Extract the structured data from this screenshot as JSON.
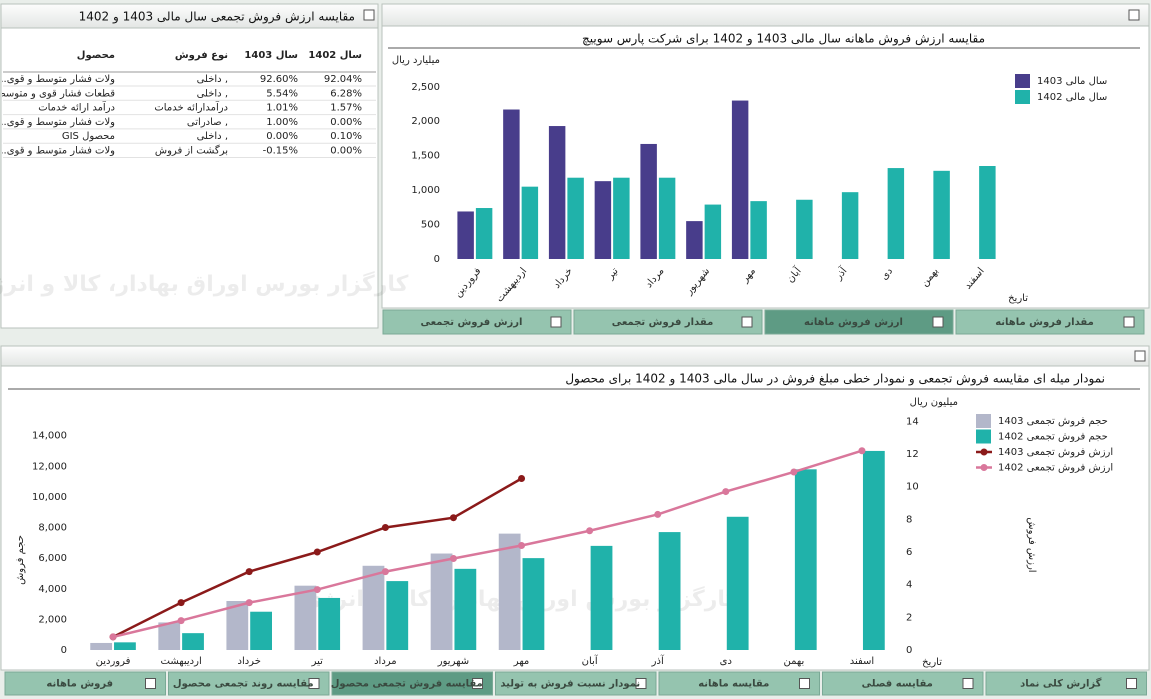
{
  "table_panel": {
    "title": "مقایسه ارزش فروش تجمعی سال مالی 1403 و 1402",
    "columns": [
      "سال 1402",
      "سال 1403",
      "نوع فروش",
      "محصول"
    ],
    "rows": [
      [
        "92.04%",
        "92.60%",
        "داخلی ,",
        "...ولات فشار متوسط و قوی"
      ],
      [
        "6.28%",
        "5.54%",
        "داخلی ,",
        "قطعات فشار قوی و متوسط"
      ],
      [
        "1.57%",
        "1.01%",
        "درآمدارائه خدمات",
        "درآمد ارائه خدمات"
      ],
      [
        "0.00%",
        "1.00%",
        "صادراتی ,",
        "...ولات فشار متوسط و قوی"
      ],
      [
        "0.10%",
        "0.00%",
        "داخلی ,",
        "GIS محصول"
      ],
      [
        "0.00%",
        "-0.15%",
        "برگشت از فروش",
        "...ولات فشار متوسط و قوی"
      ]
    ]
  },
  "watermark": "کارگزار بورس اوراق بهادار، کالا و انرژی",
  "chart_data": [
    {
      "type": "bar",
      "title": "مقایسه ارزش فروش ماهانه سال مالی 1403 و 1402 برای شرکت پارس سوییچ",
      "y_label": "میلیارد ریال",
      "x_label": "تاریخ",
      "categories": [
        "فروردین",
        "اردیبهشت",
        "خرداد",
        "تیر",
        "مرداد",
        "شهریور",
        "مهر",
        "آبان",
        "آذر",
        "دی",
        "بهمن",
        "اسفند"
      ],
      "series": [
        {
          "name": "سال مالی 1403",
          "color": "#483d8b",
          "values": [
            690,
            2170,
            1930,
            1130,
            1670,
            550,
            2300,
            null,
            null,
            null,
            null,
            null
          ]
        },
        {
          "name": "سال مالی 1402",
          "color": "#20b2aa",
          "values": [
            740,
            1050,
            1180,
            1180,
            1180,
            790,
            840,
            860,
            970,
            1320,
            1280,
            1350
          ]
        }
      ],
      "ylim": [
        0,
        2700
      ],
      "yticks": [
        0,
        500,
        {
          "value": 1000,
          "label": "1,000"
        },
        {
          "value": 1500,
          "label": "1,500"
        },
        {
          "value": 2000,
          "label": "2,000"
        },
        {
          "value": 2500,
          "label": "2,500"
        }
      ],
      "legend": "upper-right"
    },
    {
      "type": "combo",
      "title": "نمودار میله ای مقایسه فروش تجمعی و نمودار خطی مبلغ فروش در سال مالی 1403 و 1402 برای محصول",
      "y_label": "حجم فروش",
      "y2_label": "ارزش فروش",
      "y2_unit": "میلیون ریال",
      "x_label": "تاریخ",
      "categories": [
        "فروردین",
        "اردیبهشت",
        "خرداد",
        "تیر",
        "مرداد",
        "شهریور",
        "مهر",
        "آبان",
        "آذر",
        "دی",
        "بهمن",
        "اسفند"
      ],
      "series": [
        {
          "name": "حجم فروش تجمعی 1403",
          "type": "bar",
          "color": "#b3b7ca",
          "values": [
            460,
            1800,
            3200,
            4200,
            5500,
            6300,
            7600,
            null,
            null,
            null,
            null,
            null
          ]
        },
        {
          "name": "حجم فروش تجمعی 1402",
          "type": "bar",
          "color": "#20b2aa",
          "values": [
            500,
            1100,
            2500,
            3400,
            4500,
            5300,
            6000,
            6800,
            7700,
            8700,
            11800,
            13000
          ]
        },
        {
          "name": "ارزش فروش تجمعی 1403",
          "type": "line",
          "axis": "y2",
          "color": "#8b1a1a",
          "values": [
            0.8,
            2.9,
            4.8,
            6.0,
            7.5,
            8.1,
            10.5,
            null,
            null,
            null,
            null,
            null
          ]
        },
        {
          "name": "ارزش فروش تجمعی 1402",
          "type": "line",
          "axis": "y2",
          "color": "#d9779b",
          "values": [
            0.8,
            1.8,
            2.9,
            3.7,
            4.8,
            5.6,
            6.4,
            7.3,
            8.3,
            9.7,
            10.9,
            12.2
          ]
        }
      ],
      "ylim": [
        0,
        16000
      ],
      "yticks": [
        0,
        {
          "value": 2000,
          "label": "2,000"
        },
        {
          "value": 4000,
          "label": "4,000"
        },
        {
          "value": 6000,
          "label": "6,000"
        },
        {
          "value": 8000,
          "label": "8,000"
        },
        {
          "value": 10000,
          "label": "10,000"
        },
        {
          "value": 12000,
          "label": "12,000"
        },
        {
          "value": 14000,
          "label": "14,000"
        }
      ],
      "y2lim": [
        0,
        15
      ],
      "y2ticks": [
        0,
        2,
        4,
        6,
        8,
        10,
        12,
        14
      ],
      "legend": "upper-right"
    }
  ],
  "top_tabs": [
    "ارزش فروش تجمعی",
    "مقدار فروش تجمعی",
    "ارزش فروش ماهانه",
    "مقدار فروش ماهانه"
  ],
  "bottom_tabs": [
    "فروش ماهانه",
    "مقایسه روند تجمعی محصول",
    "مقایسه فروش تجمعی محصول",
    "نمودار نسبت فروش به تولید",
    "مقایسه ماهانه",
    "مقایسه فصلی",
    "گزارش کلی نماد"
  ]
}
